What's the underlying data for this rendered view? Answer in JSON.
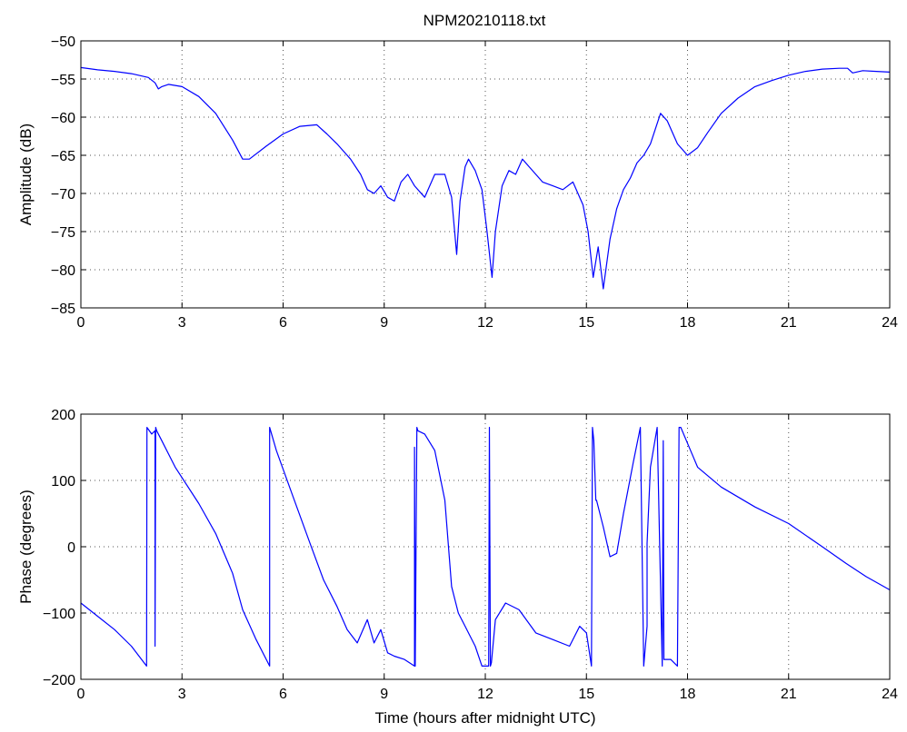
{
  "title": "NPM20210118.txt",
  "colors": {
    "series": "#0000ff",
    "axes": "#000000",
    "grid": "#555555"
  },
  "chart_data": [
    {
      "type": "line",
      "title": "NPM20210118.txt",
      "xlabel": "",
      "ylabel": "Amplitude (dB)",
      "xlim": [
        0,
        24
      ],
      "ylim": [
        -85,
        -50
      ],
      "xticks": [
        0,
        3,
        6,
        9,
        12,
        15,
        18,
        21,
        24
      ],
      "yticks": [
        -85,
        -80,
        -75,
        -70,
        -65,
        -60,
        -55,
        -50
      ],
      "xtick_labels": [
        "0",
        "3",
        "6",
        "9",
        "12",
        "15",
        "18",
        "21",
        "24"
      ],
      "ytick_labels": [
        "−85",
        "−80",
        "−75",
        "−70",
        "−65",
        "−60",
        "−55",
        "−50"
      ],
      "grid": true,
      "series": [
        {
          "color": "#0000ff",
          "x": [
            0,
            0.5,
            1,
            1.5,
            2,
            2.2,
            2.3,
            2.4,
            2.6,
            3,
            3.5,
            4,
            4.5,
            4.8,
            5,
            5.5,
            6,
            6.5,
            7,
            7.3,
            7.6,
            8,
            8.3,
            8.5,
            8.7,
            8.9,
            9.1,
            9.3,
            9.5,
            9.7,
            9.9,
            10.2,
            10.5,
            10.8,
            11,
            11.15,
            11.25,
            11.4,
            11.5,
            11.7,
            11.9,
            12.05,
            12.2,
            12.3,
            12.5,
            12.7,
            12.9,
            13.1,
            13.3,
            13.5,
            13.7,
            14,
            14.3,
            14.6,
            14.9,
            15.05,
            15.2,
            15.35,
            15.5,
            15.7,
            15.9,
            16.1,
            16.3,
            16.5,
            16.7,
            16.9,
            17.2,
            17.4,
            17.7,
            18,
            18.3,
            18.6,
            19,
            19.5,
            20,
            20.5,
            21,
            21.5,
            22,
            22.5,
            22.75,
            22.9,
            23.2,
            23.6,
            24
          ],
          "y": [
            -53.5,
            -53.8,
            -54.0,
            -54.3,
            -54.8,
            -55.5,
            -56.3,
            -56.0,
            -55.7,
            -56.0,
            -57.3,
            -59.5,
            -63.0,
            -65.5,
            -65.5,
            -63.8,
            -62.2,
            -61.2,
            -61.0,
            -62.2,
            -63.5,
            -65.5,
            -67.5,
            -69.5,
            -70.0,
            -69.0,
            -70.5,
            -71.0,
            -68.5,
            -67.5,
            -69.0,
            -70.5,
            -67.5,
            -67.5,
            -70.5,
            -78.0,
            -71.0,
            -66.5,
            -65.5,
            -67.0,
            -69.5,
            -75.0,
            -81.0,
            -75.0,
            -69.0,
            -67.0,
            -67.5,
            -65.5,
            -66.5,
            -67.5,
            -68.5,
            -69.0,
            -69.5,
            -68.5,
            -71.5,
            -75.0,
            -81.0,
            -77.0,
            -82.5,
            -76.0,
            -72.0,
            -69.5,
            -68.0,
            -66.0,
            -65.0,
            -63.5,
            -59.5,
            -60.5,
            -63.5,
            -65.0,
            -64.0,
            -62.0,
            -59.5,
            -57.5,
            -56.0,
            -55.2,
            -54.5,
            -54.0,
            -53.7,
            -53.6,
            -53.6,
            -54.2,
            -53.9,
            -54.0,
            -54.1
          ]
        }
      ]
    },
    {
      "type": "line",
      "title": "",
      "xlabel": "Time (hours after midnight UTC)",
      "ylabel": "Phase (degrees)",
      "xlim": [
        0,
        24
      ],
      "ylim": [
        -200,
        200
      ],
      "xticks": [
        0,
        3,
        6,
        9,
        12,
        15,
        18,
        21,
        24
      ],
      "yticks": [
        -200,
        -100,
        0,
        100,
        200
      ],
      "xtick_labels": [
        "0",
        "3",
        "6",
        "9",
        "12",
        "15",
        "18",
        "21",
        "24"
      ],
      "ytick_labels": [
        "−200",
        "−100",
        "0",
        "100",
        "200"
      ],
      "grid": true,
      "series": [
        {
          "color": "#0000ff",
          "x": [
            0,
            0.5,
            1,
            1.5,
            1.95,
            1.96,
            2.1,
            2.2,
            2.2,
            2.22,
            2.25,
            2.4,
            2.8,
            3.5,
            4,
            4.5,
            4.8,
            5.2,
            5.6,
            5.6,
            5.8,
            6.3,
            6.8,
            7.2,
            7.6,
            7.9,
            8.2,
            8.5,
            8.7,
            8.9,
            9.1,
            9.3,
            9.6,
            9.9,
            9.9,
            9.92,
            9.97,
            10.0,
            10.2,
            10.5,
            10.8,
            11,
            11.2,
            11.4,
            11.7,
            11.9,
            12.1,
            12.12,
            12.15,
            12.18,
            12.3,
            12.6,
            13,
            13.5,
            14,
            14.5,
            14.8,
            15,
            15.15,
            15.18,
            15.22,
            15.28,
            15.3,
            15.5,
            15.7,
            15.9,
            16.1,
            16.4,
            16.6,
            16.7,
            16.8,
            16.8,
            16.9,
            17.1,
            17.25,
            17.28,
            17.3,
            17.5,
            17.7,
            17.75,
            17.8,
            18.3,
            19,
            20,
            21,
            22,
            22.7,
            23.3,
            24
          ],
          "y": [
            -85,
            -105,
            -125,
            -150,
            -180,
            180,
            170,
            175,
            -150,
            180,
            175,
            160,
            120,
            65,
            20,
            -40,
            -95,
            -140,
            -180,
            180,
            145,
            75,
            5,
            -50,
            -90,
            -125,
            -145,
            -110,
            -145,
            -125,
            -160,
            -165,
            -170,
            -180,
            150,
            -180,
            180,
            175,
            170,
            145,
            70,
            -60,
            -100,
            -120,
            -150,
            -180,
            -180,
            180,
            -180,
            -175,
            -110,
            -85,
            -95,
            -130,
            -140,
            -150,
            -120,
            -130,
            -180,
            180,
            160,
            70,
            70,
            30,
            -15,
            -10,
            50,
            130,
            180,
            -180,
            -120,
            5,
            120,
            180,
            -180,
            160,
            -170,
            -170,
            -180,
            180,
            180,
            120,
            90,
            60,
            35,
            0,
            -25,
            -45,
            -65
          ]
        }
      ]
    }
  ]
}
